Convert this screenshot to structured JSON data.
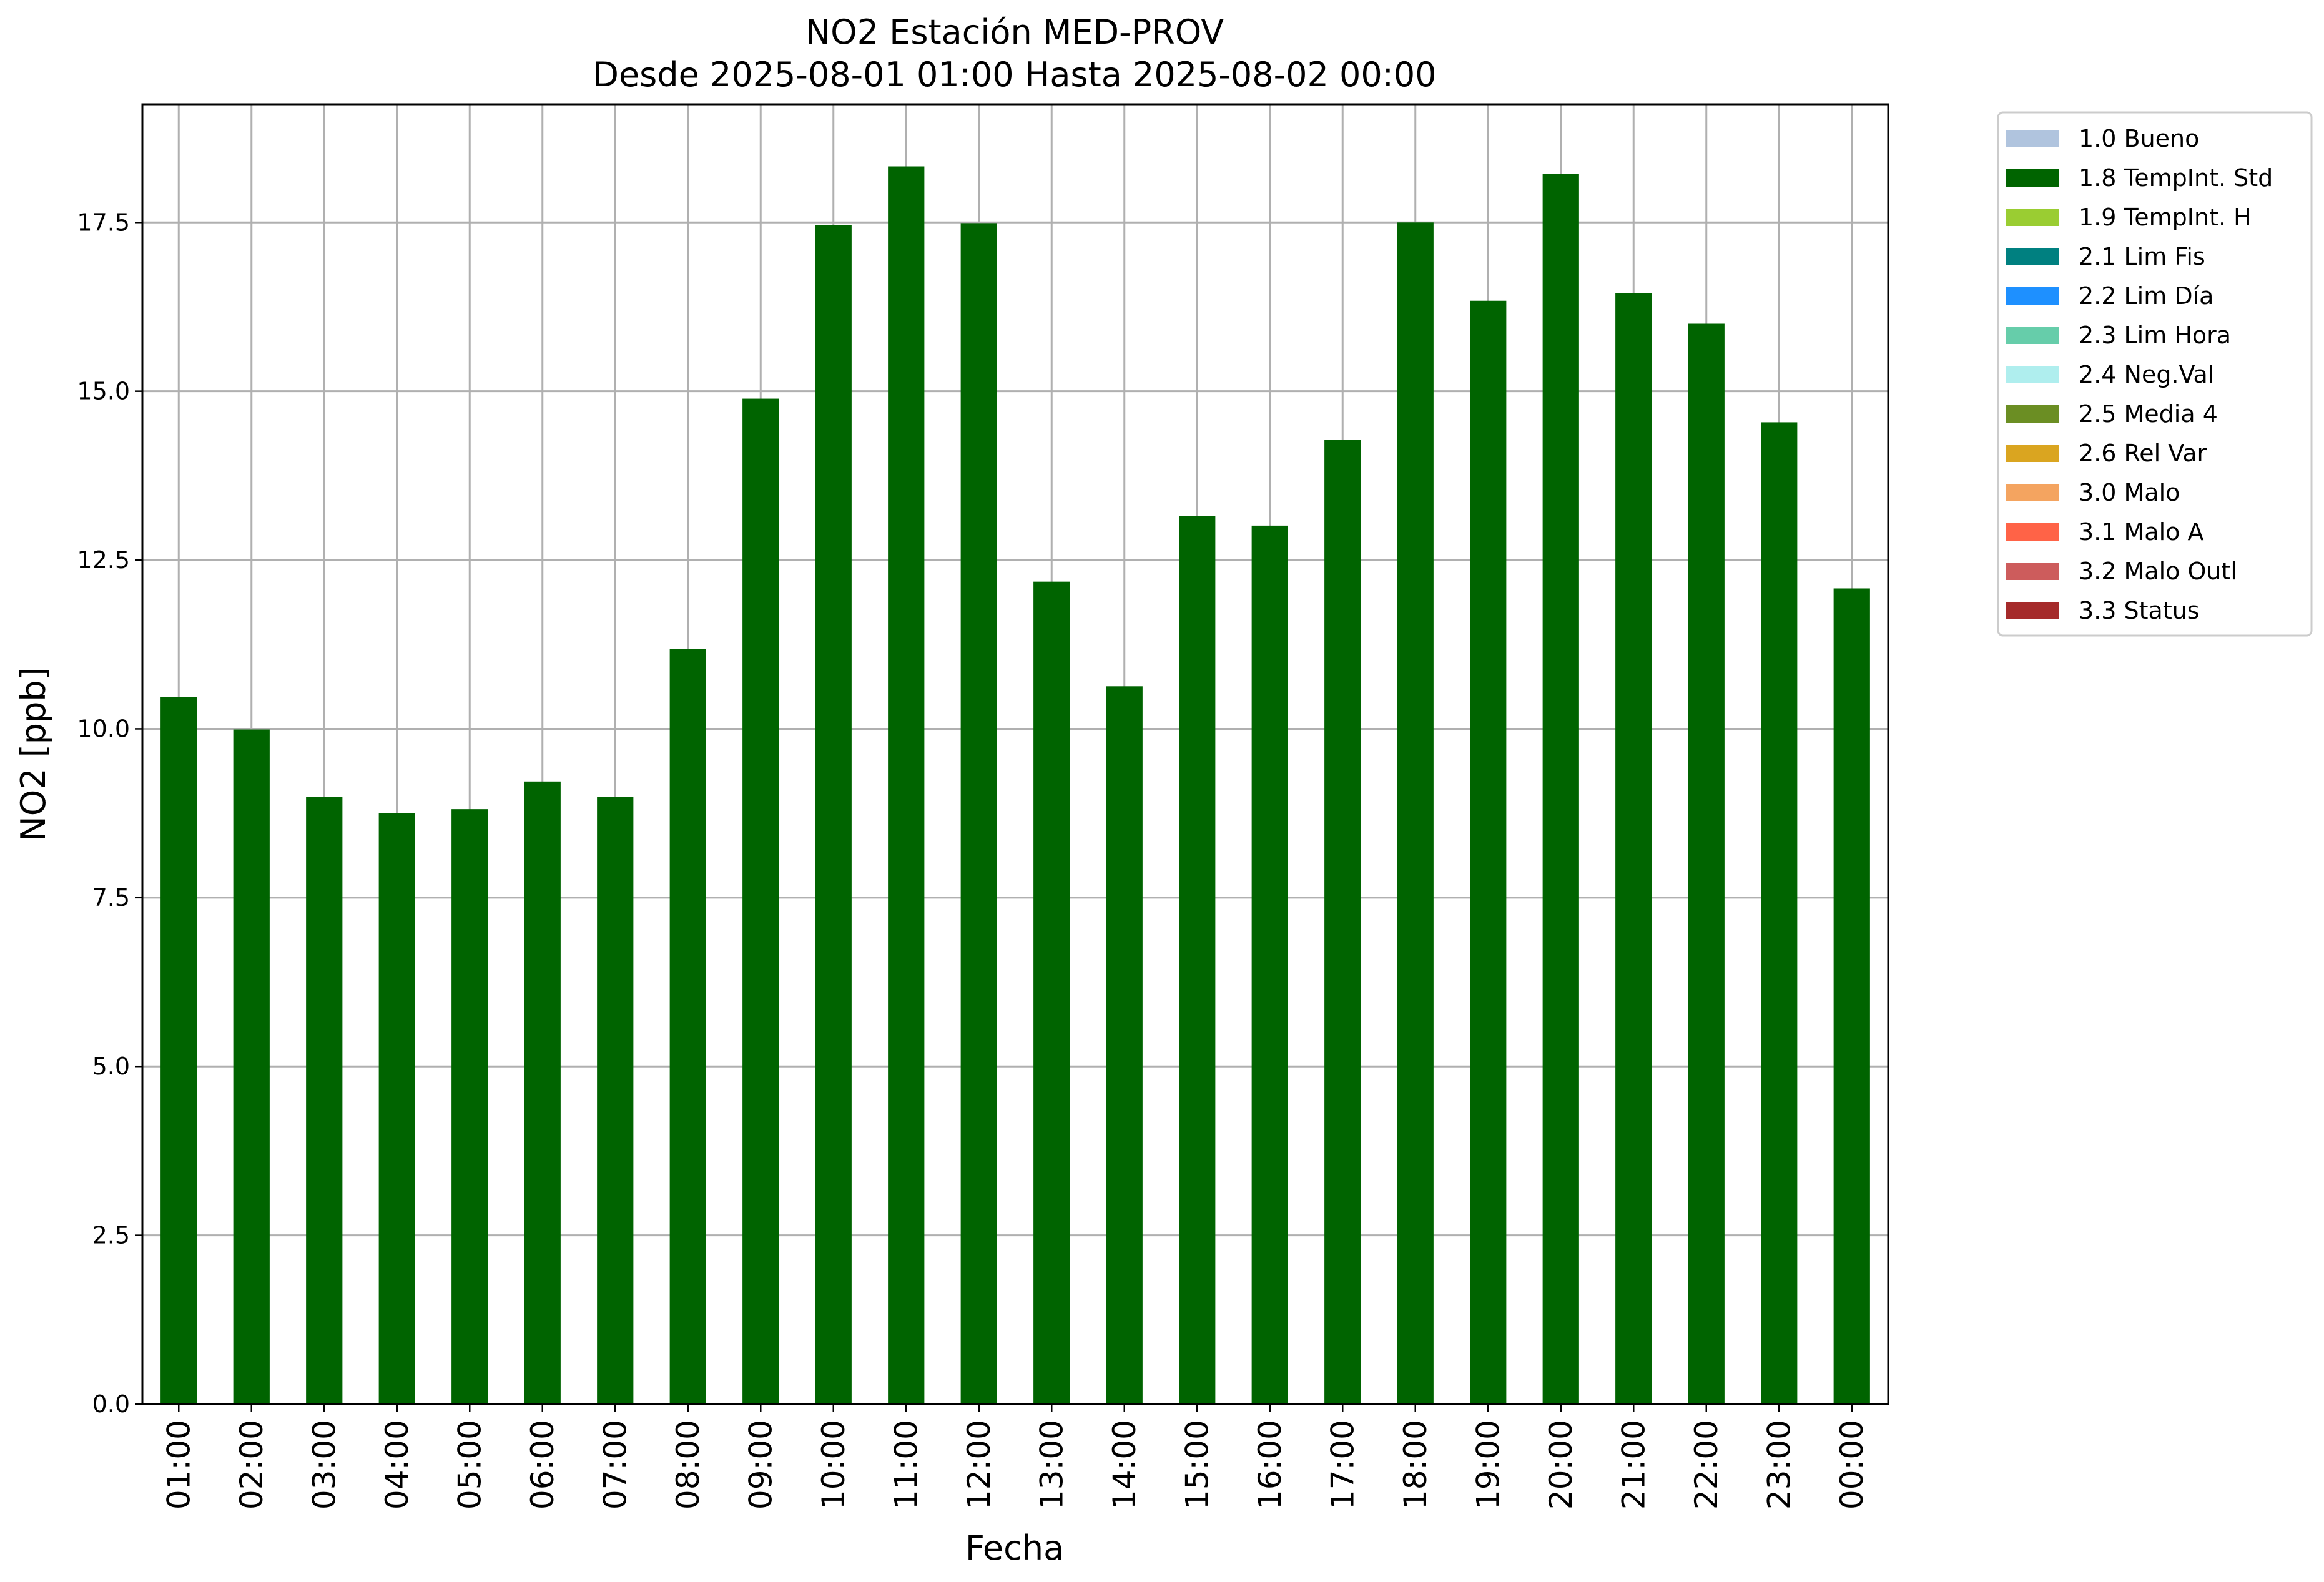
{
  "chart_data": {
    "type": "bar",
    "title": [
      "NO2 Estación MED-PROV",
      "Desde 2025-08-01 01:00 Hasta 2025-08-02 00:00"
    ],
    "xlabel": "Fecha",
    "ylabel": "NO2 [ppb]",
    "ylim": [
      0,
      19.25
    ],
    "yticks": [
      "0.0",
      "2.5",
      "5.0",
      "7.5",
      "10.0",
      "12.5",
      "15.0",
      "17.5"
    ],
    "grid": true,
    "legend_position": "outside-right",
    "categories": [
      "01:00",
      "02:00",
      "03:00",
      "04:00",
      "05:00",
      "06:00",
      "07:00",
      "08:00",
      "09:00",
      "10:00",
      "11:00",
      "12:00",
      "13:00",
      "14:00",
      "15:00",
      "16:00",
      "17:00",
      "18:00",
      "19:00",
      "20:00",
      "21:00",
      "22:00",
      "23:00",
      "00:00"
    ],
    "series": [
      {
        "name": "1.8 TempInt. Std",
        "color": "#006400",
        "values": [
          10.47,
          9.99,
          8.99,
          8.75,
          8.81,
          9.22,
          8.99,
          11.18,
          14.89,
          17.46,
          18.33,
          17.49,
          12.18,
          10.63,
          13.15,
          13.01,
          14.28,
          17.5,
          16.34,
          18.22,
          16.45,
          16.0,
          14.54,
          12.08
        ]
      }
    ],
    "legend": [
      {
        "label": "1.0 Bueno",
        "color": "#b0c4de"
      },
      {
        "label": "1.8 TempInt. Std",
        "color": "#006400"
      },
      {
        "label": "1.9 TempInt. H",
        "color": "#9acd32"
      },
      {
        "label": "2.1 Lim Fis",
        "color": "#008080"
      },
      {
        "label": "2.2 Lim Día",
        "color": "#1e90ff"
      },
      {
        "label": "2.3 Lim Hora",
        "color": "#66cdaa"
      },
      {
        "label": "2.4 Neg.Val",
        "color": "#afeeee"
      },
      {
        "label": "2.5 Media 4",
        "color": "#6b8e23"
      },
      {
        "label": "2.6 Rel Var",
        "color": "#daa520"
      },
      {
        "label": "3.0 Malo",
        "color": "#f4a460"
      },
      {
        "label": "3.1 Malo A",
        "color": "#ff6347"
      },
      {
        "label": "3.2 Malo Outl",
        "color": "#cd5c5c"
      },
      {
        "label": "3.3 Status",
        "color": "#a52a2a"
      }
    ]
  }
}
